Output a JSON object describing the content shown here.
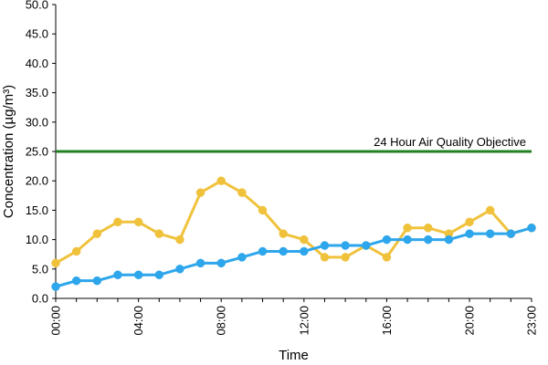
{
  "chart_data": {
    "type": "line",
    "title": "",
    "xlabel": "Time",
    "ylabel": "Concentration (µg/m³)",
    "ylim": [
      0,
      50
    ],
    "xlim": [
      0,
      23
    ],
    "x": [
      0,
      1,
      2,
      3,
      4,
      5,
      6,
      7,
      8,
      9,
      10,
      11,
      12,
      13,
      14,
      15,
      16,
      17,
      18,
      19,
      20,
      21,
      22,
      23
    ],
    "y_ticks": [
      "0.0",
      "5.0",
      "10.0",
      "15.0",
      "20.0",
      "25.0",
      "30.0",
      "35.0",
      "40.0",
      "45.0",
      "50.0"
    ],
    "x_ticks": [
      {
        "x": 0,
        "label": "00:00"
      },
      {
        "x": 4,
        "label": "04:00"
      },
      {
        "x": 8,
        "label": "08:00"
      },
      {
        "x": 12,
        "label": "12:00"
      },
      {
        "x": 16,
        "label": "16:00"
      },
      {
        "x": 20,
        "label": "20:00"
      },
      {
        "x": 23,
        "label": "23:00"
      }
    ],
    "series": [
      {
        "color": "#f0c23c",
        "values": [
          6,
          8,
          11,
          13,
          13,
          11,
          10,
          18,
          20,
          18,
          15,
          11,
          10,
          7,
          7,
          9,
          7,
          12,
          12,
          11,
          13,
          15,
          11,
          12
        ]
      },
      {
        "color": "#2ea6ec",
        "values": [
          2,
          3,
          3,
          4,
          4,
          4,
          5,
          6,
          6,
          7,
          8,
          8,
          8,
          9,
          9,
          9,
          10,
          10,
          10,
          10,
          11,
          11,
          11,
          12
        ]
      }
    ],
    "reference_line": {
      "value": 25,
      "label": "24 Hour Air Quality Objective",
      "color": "#218021"
    },
    "grid": false,
    "legend": "none"
  }
}
